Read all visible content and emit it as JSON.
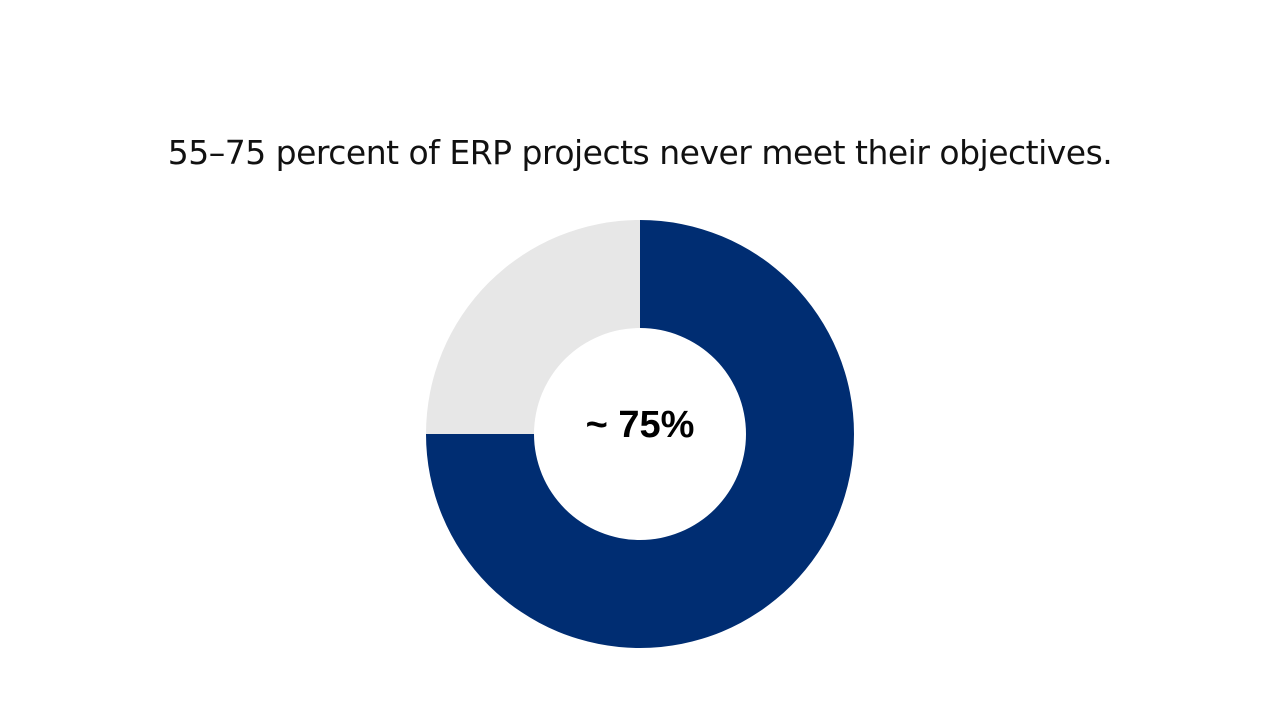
{
  "headline": "55–75 percent of ERP projects never meet their objectives.",
  "chart_data": {
    "type": "pie",
    "donut": true,
    "center_label": "~ 75%",
    "slices": [
      {
        "value": 75,
        "color": "#002d72"
      },
      {
        "value": 25,
        "color": "#e7e7e7"
      }
    ]
  }
}
